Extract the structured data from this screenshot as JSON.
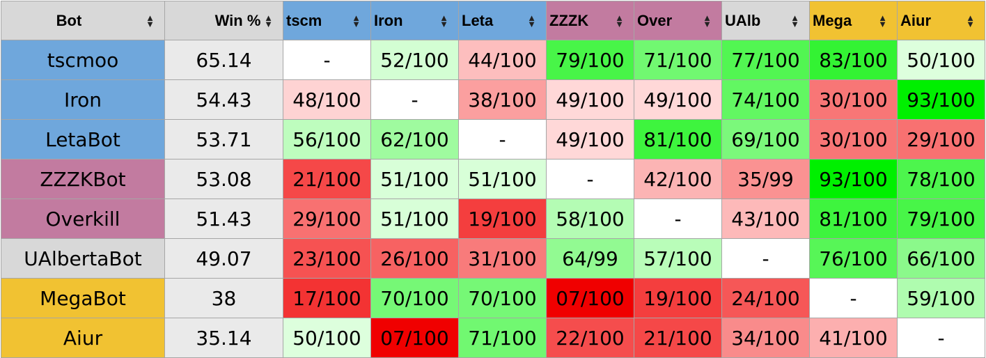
{
  "colors": {
    "terran": "#6fa7dc",
    "zerg": "#c27ba0",
    "random": "#d8d8d8",
    "protoss": "#f1c232",
    "winpct_bg": "#eaeaea"
  },
  "columns": [
    {
      "label": "Bot",
      "race": "random"
    },
    {
      "label": "Win %",
      "race": "random"
    },
    {
      "label": "tscm",
      "race": "terran"
    },
    {
      "label": "Iron",
      "race": "terran"
    },
    {
      "label": "Leta",
      "race": "terran"
    },
    {
      "label": "ZZZK",
      "race": "zerg"
    },
    {
      "label": "Over",
      "race": "zerg"
    },
    {
      "label": "UAlb",
      "race": "random"
    },
    {
      "label": "Mega",
      "race": "protoss"
    },
    {
      "label": "Aiur",
      "race": "protoss"
    }
  ],
  "rows": [
    {
      "bot": "tscmoo",
      "race": "terran",
      "win": "65.14",
      "results": [
        "-",
        "52/100",
        "44/100",
        "79/100",
        "71/100",
        "77/100",
        "83/100",
        "50/100"
      ]
    },
    {
      "bot": "Iron",
      "race": "terran",
      "win": "54.43",
      "results": [
        "48/100",
        "-",
        "38/100",
        "49/100",
        "49/100",
        "74/100",
        "30/100",
        "93/100"
      ]
    },
    {
      "bot": "LetaBot",
      "race": "terran",
      "win": "53.71",
      "results": [
        "56/100",
        "62/100",
        "-",
        "49/100",
        "81/100",
        "69/100",
        "30/100",
        "29/100"
      ]
    },
    {
      "bot": "ZZZKBot",
      "race": "zerg",
      "win": "53.08",
      "results": [
        "21/100",
        "51/100",
        "51/100",
        "-",
        "42/100",
        "35/99",
        "93/100",
        "78/100"
      ]
    },
    {
      "bot": "Overkill",
      "race": "zerg",
      "win": "51.43",
      "results": [
        "29/100",
        "51/100",
        "19/100",
        "58/100",
        "-",
        "43/100",
        "81/100",
        "79/100"
      ]
    },
    {
      "bot": "UAlbertaBot",
      "race": "random",
      "win": "49.07",
      "results": [
        "23/100",
        "26/100",
        "31/100",
        "64/99",
        "57/100",
        "-",
        "76/100",
        "66/100"
      ]
    },
    {
      "bot": "MegaBot",
      "race": "protoss",
      "win": "38",
      "results": [
        "17/100",
        "70/100",
        "70/100",
        "07/100",
        "19/100",
        "24/100",
        "-",
        "59/100"
      ]
    },
    {
      "bot": "Aiur",
      "race": "protoss",
      "win": "35.14",
      "results": [
        "50/100",
        "07/100",
        "71/100",
        "22/100",
        "21/100",
        "34/100",
        "41/100",
        "-"
      ]
    }
  ],
  "sort_icon": "sort-updown-icon"
}
